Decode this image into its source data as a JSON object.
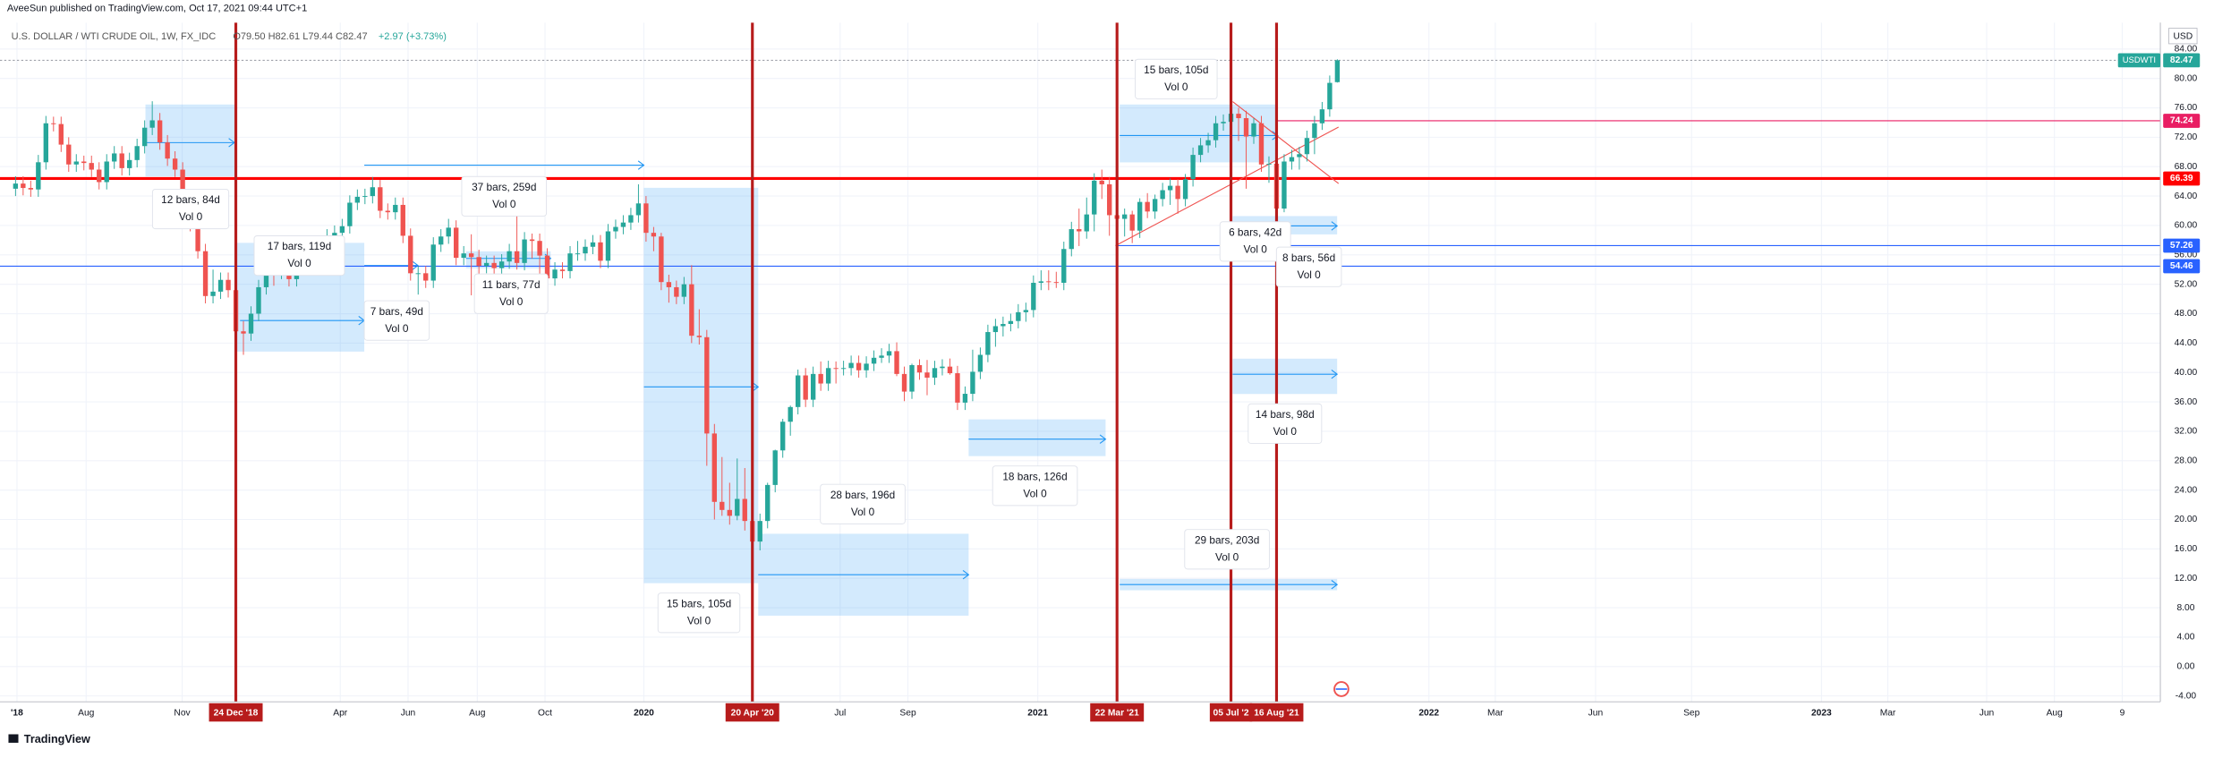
{
  "header": {
    "publisher": "AveeSun published on TradingView.com, Oct 17, 2021 09:44 UTC+1",
    "symbol": "U.S. DOLLAR / WTI CRUDE OIL, 1W, FX_IDC",
    "ohlc": "O79.50 H82.61 L79.44 C82.47",
    "change": "+2.97 (+3.73%)"
  },
  "footer": {
    "brand": "TradingView"
  },
  "chart_data": {
    "type": "candlestick",
    "currency": "USD",
    "symbol_tag": "USDWTI",
    "up_color": "#26a69a",
    "down_color": "#ef5350",
    "ylim": [
      -4.8,
      87.6
    ],
    "yticks": [
      {
        "value": -4,
        "label": "-4.00"
      },
      {
        "value": 0,
        "label": "0.00"
      },
      {
        "value": 4,
        "label": "4.00"
      },
      {
        "value": 8,
        "label": "8.00"
      },
      {
        "value": 12,
        "label": "12.00"
      },
      {
        "value": 16,
        "label": "16.00"
      },
      {
        "value": 20,
        "label": "20.00"
      },
      {
        "value": 24,
        "label": "24.00"
      },
      {
        "value": 28,
        "label": "28.00"
      },
      {
        "value": 32,
        "label": "32.00"
      },
      {
        "value": 36,
        "label": "36.00"
      },
      {
        "value": 40,
        "label": "40.00"
      },
      {
        "value": 44,
        "label": "44.00"
      },
      {
        "value": 48,
        "label": "48.00"
      },
      {
        "value": 52,
        "label": "52.00"
      },
      {
        "value": 56,
        "label": "56.00"
      },
      {
        "value": 60,
        "label": "60.00"
      },
      {
        "value": 64,
        "label": "64.00"
      },
      {
        "value": 68,
        "label": "68.00"
      },
      {
        "value": 72,
        "label": "72.00"
      },
      {
        "value": 76,
        "label": "76.00"
      },
      {
        "value": 80,
        "label": "80.00"
      },
      {
        "value": 84,
        "label": "84.00"
      }
    ],
    "grid": true,
    "x_labels": [
      "'18",
      "Aug",
      "Nov",
      "Apr",
      "Jun",
      "Aug",
      "Oct",
      "2020",
      "Jul",
      "Sep",
      "2021",
      "2022",
      "Mar",
      "Jun",
      "Sep",
      "2023",
      "Mar",
      "Jun",
      "Aug",
      "9"
    ],
    "price_lines": [
      {
        "value": 82.47,
        "color": "#26a69a"
      },
      {
        "value": 74.24,
        "color": "#e91e63"
      },
      {
        "value": 66.39,
        "color": "#ff0000"
      },
      {
        "value": 57.26,
        "color": "#2962ff"
      },
      {
        "value": 54.46,
        "color": "#2962ff"
      }
    ],
    "vlines": [
      {
        "label": "24 Dec '18"
      },
      {
        "label": "20 Apr '20"
      },
      {
        "label": "22 Mar '21"
      },
      {
        "label": "05 Jul '2"
      },
      {
        "label": "16 Aug '21"
      }
    ],
    "vline_color": "#b71c1c",
    "ranges": [
      {
        "text": "12 bars, 84d",
        "volume": "Vol 0"
      },
      {
        "text": "17 bars, 119d",
        "volume": "Vol 0"
      },
      {
        "text": "7 bars, 49d",
        "volume": "Vol 0"
      },
      {
        "text": "37 bars, 259d",
        "volume": "Vol 0"
      },
      {
        "text": "11 bars, 77d",
        "volume": "Vol 0"
      },
      {
        "text": "15 bars, 105d",
        "volume": "Vol 0"
      },
      {
        "text": "28 bars, 196d",
        "volume": "Vol 0"
      },
      {
        "text": "18 bars, 126d",
        "volume": "Vol 0"
      },
      {
        "text": "15 bars, 105d",
        "volume": "Vol 0"
      },
      {
        "text": "6 bars, 42d",
        "volume": "Vol 0"
      },
      {
        "text": "8 bars, 56d",
        "volume": "Vol 0"
      },
      {
        "text": "14 bars, 98d",
        "volume": "Vol 0"
      },
      {
        "text": "29 bars, 203d",
        "volume": "Vol 0"
      }
    ],
    "candles": [
      [
        65.0,
        66.7,
        64.0,
        65.7
      ],
      [
        65.7,
        66.7,
        64.1,
        65.1
      ],
      [
        65.1,
        66.1,
        63.9,
        64.9
      ],
      [
        64.9,
        69.6,
        63.9,
        68.6
      ],
      [
        68.6,
        74.9,
        67.6,
        73.9
      ],
      [
        73.9,
        74.8,
        72.8,
        73.8
      ],
      [
        73.8,
        74.8,
        70.0,
        71.0
      ],
      [
        71.0,
        72.0,
        67.3,
        68.3
      ],
      [
        68.3,
        69.7,
        67.3,
        68.7
      ],
      [
        68.7,
        69.5,
        67.5,
        68.5
      ],
      [
        68.5,
        69.5,
        66.6,
        67.6
      ],
      [
        67.6,
        68.6,
        64.9,
        65.9
      ],
      [
        65.9,
        69.7,
        64.9,
        68.7
      ],
      [
        68.7,
        70.8,
        67.7,
        69.8
      ],
      [
        69.8,
        70.8,
        66.8,
        67.8
      ],
      [
        67.8,
        69.9,
        66.8,
        68.9
      ],
      [
        68.9,
        71.8,
        67.9,
        70.8
      ],
      [
        70.8,
        74.3,
        69.8,
        73.3
      ],
      [
        73.3,
        76.9,
        72.3,
        74.3
      ],
      [
        74.3,
        75.3,
        70.3,
        71.3
      ],
      [
        71.3,
        72.3,
        68.1,
        69.1
      ],
      [
        69.1,
        70.1,
        66.6,
        67.6
      ],
      [
        67.6,
        68.6,
        62.1,
        63.1
      ],
      [
        63.1,
        64.1,
        59.2,
        60.2
      ],
      [
        60.2,
        61.2,
        55.5,
        56.5
      ],
      [
        56.5,
        57.5,
        49.4,
        50.4
      ],
      [
        50.4,
        54.0,
        49.4,
        51.0
      ],
      [
        51.0,
        53.6,
        50.0,
        52.6
      ],
      [
        52.6,
        53.6,
        50.2,
        51.2
      ],
      [
        51.2,
        52.2,
        44.6,
        45.6
      ],
      [
        45.6,
        47.0,
        42.4,
        45.3
      ],
      [
        45.3,
        49.0,
        44.3,
        48.0
      ],
      [
        48.0,
        52.6,
        47.0,
        51.6
      ],
      [
        51.6,
        54.8,
        50.6,
        53.8
      ],
      [
        53.8,
        54.7,
        51.8,
        53.7
      ],
      [
        53.7,
        56.3,
        52.7,
        55.3
      ],
      [
        55.3,
        56.3,
        51.7,
        52.7
      ],
      [
        52.7,
        56.6,
        51.7,
        55.6
      ],
      [
        55.6,
        58.3,
        54.6,
        57.3
      ],
      [
        57.3,
        58.3,
        55.1,
        56.1
      ],
      [
        56.1,
        57.1,
        55.1,
        56.1
      ],
      [
        56.1,
        59.5,
        55.1,
        58.5
      ],
      [
        58.5,
        60.0,
        57.5,
        59.0
      ],
      [
        59.0,
        60.9,
        58.0,
        59.9
      ],
      [
        59.9,
        64.1,
        58.9,
        63.1
      ],
      [
        63.1,
        64.9,
        62.1,
        63.9
      ],
      [
        63.9,
        65.0,
        62.9,
        64.0
      ],
      [
        64.0,
        66.6,
        63.0,
        65.2
      ],
      [
        65.2,
        66.2,
        61.0,
        62.0
      ],
      [
        62.0,
        63.0,
        60.8,
        61.8
      ],
      [
        61.8,
        63.8,
        60.8,
        62.8
      ],
      [
        62.8,
        63.8,
        57.6,
        58.6
      ],
      [
        58.6,
        59.6,
        52.5,
        53.5
      ],
      [
        53.5,
        54.5,
        50.6,
        53.5
      ],
      [
        53.5,
        54.5,
        51.5,
        52.5
      ],
      [
        52.5,
        58.4,
        51.5,
        57.4
      ],
      [
        57.4,
        59.5,
        56.4,
        58.5
      ],
      [
        58.5,
        60.9,
        57.5,
        59.7
      ],
      [
        59.7,
        60.7,
        54.6,
        55.6
      ],
      [
        55.6,
        57.2,
        54.6,
        56.2
      ],
      [
        56.2,
        58.8,
        50.5,
        55.7
      ],
      [
        55.7,
        56.7,
        51.0,
        54.5
      ],
      [
        54.5,
        55.9,
        53.5,
        54.9
      ],
      [
        54.9,
        55.9,
        53.2,
        54.2
      ],
      [
        54.2,
        56.1,
        53.2,
        55.1
      ],
      [
        55.1,
        57.5,
        54.1,
        56.5
      ],
      [
        56.5,
        62.9,
        54.0,
        54.9
      ],
      [
        54.9,
        59.1,
        53.9,
        58.1
      ],
      [
        58.1,
        58.9,
        55.5,
        57.9
      ],
      [
        57.9,
        58.9,
        50.9,
        55.9
      ],
      [
        55.9,
        56.9,
        51.8,
        52.8
      ],
      [
        52.8,
        55.0,
        51.8,
        54.0
      ],
      [
        54.0,
        55.0,
        52.8,
        53.8
      ],
      [
        53.8,
        57.2,
        52.8,
        56.2
      ],
      [
        56.2,
        57.9,
        55.2,
        56.2
      ],
      [
        56.2,
        58.1,
        55.2,
        57.1
      ],
      [
        57.1,
        58.7,
        56.1,
        57.7
      ],
      [
        57.7,
        58.7,
        54.2,
        55.2
      ],
      [
        55.2,
        60.2,
        54.2,
        59.2
      ],
      [
        59.2,
        60.8,
        58.2,
        59.8
      ],
      [
        59.8,
        61.4,
        58.8,
        60.4
      ],
      [
        60.4,
        62.4,
        59.4,
        61.4
      ],
      [
        61.4,
        65.6,
        60.4,
        63.0
      ],
      [
        63.0,
        64.0,
        57.8,
        59.0
      ],
      [
        59.0,
        59.8,
        56.5,
        58.5
      ],
      [
        58.5,
        59.0,
        51.2,
        52.3
      ],
      [
        52.3,
        53.3,
        49.5,
        51.6
      ],
      [
        51.6,
        52.5,
        49.3,
        50.3
      ],
      [
        50.3,
        53.0,
        49.3,
        52.0
      ],
      [
        52.0,
        54.6,
        44.0,
        45.0
      ],
      [
        45.0,
        48.6,
        43.8,
        44.8
      ],
      [
        44.8,
        45.8,
        27.3,
        31.7
      ],
      [
        31.7,
        33.0,
        20.0,
        22.4
      ],
      [
        22.4,
        28.5,
        20.5,
        21.3
      ],
      [
        21.3,
        25.0,
        19.3,
        20.5
      ],
      [
        20.5,
        28.3,
        19.9,
        22.8
      ],
      [
        22.8,
        27.0,
        18.5,
        19.8
      ],
      [
        19.8,
        21.0,
        15.5,
        17.0
      ],
      [
        17.0,
        20.8,
        15.8,
        19.8
      ],
      [
        19.8,
        25.0,
        18.8,
        24.7
      ],
      [
        24.7,
        29.5,
        23.7,
        29.4
      ],
      [
        29.4,
        33.7,
        28.4,
        33.3
      ],
      [
        33.3,
        35.5,
        31.4,
        35.3
      ],
      [
        35.3,
        40.4,
        34.3,
        39.6
      ],
      [
        39.6,
        40.6,
        35.3,
        36.3
      ],
      [
        36.3,
        40.8,
        35.3,
        39.8
      ],
      [
        39.8,
        41.5,
        37.5,
        38.5
      ],
      [
        38.5,
        41.6,
        37.5,
        40.6
      ],
      [
        40.6,
        41.5,
        38.5,
        40.5
      ],
      [
        40.5,
        41.6,
        39.6,
        40.6
      ],
      [
        40.6,
        42.3,
        39.6,
        41.3
      ],
      [
        41.3,
        42.3,
        39.3,
        40.3
      ],
      [
        40.3,
        42.2,
        39.3,
        41.2
      ],
      [
        41.2,
        43.0,
        40.2,
        42.0
      ],
      [
        42.0,
        43.3,
        41.3,
        42.3
      ],
      [
        42.3,
        43.9,
        41.3,
        42.9
      ],
      [
        42.9,
        44.1,
        39.5,
        39.8
      ],
      [
        39.8,
        40.8,
        36.1,
        37.4
      ],
      [
        37.4,
        41.2,
        36.4,
        41.0
      ],
      [
        41.0,
        41.8,
        39.0,
        40.0
      ],
      [
        40.0,
        41.7,
        36.9,
        39.3
      ],
      [
        39.3,
        41.6,
        38.3,
        40.6
      ],
      [
        40.6,
        41.8,
        39.6,
        40.8
      ],
      [
        40.8,
        41.9,
        39.7,
        39.9
      ],
      [
        39.9,
        40.9,
        34.9,
        35.9
      ],
      [
        35.9,
        38.1,
        34.9,
        37.1
      ],
      [
        37.1,
        43.1,
        36.1,
        40.1
      ],
      [
        40.1,
        43.4,
        39.1,
        42.4
      ],
      [
        42.4,
        46.5,
        41.4,
        45.5
      ],
      [
        45.5,
        47.3,
        43.5,
        46.3
      ],
      [
        46.3,
        47.6,
        44.9,
        46.6
      ],
      [
        46.6,
        48.0,
        45.6,
        47.0
      ],
      [
        47.0,
        49.3,
        46.0,
        48.2
      ],
      [
        48.2,
        49.5,
        46.9,
        48.5
      ],
      [
        48.5,
        53.2,
        47.5,
        52.2
      ],
      [
        52.2,
        53.9,
        51.2,
        52.4
      ],
      [
        52.4,
        53.9,
        51.2,
        52.3
      ],
      [
        52.3,
        53.7,
        51.5,
        52.2
      ],
      [
        52.2,
        57.8,
        51.2,
        56.8
      ],
      [
        56.8,
        60.5,
        55.8,
        59.5
      ],
      [
        59.5,
        62.3,
        57.2,
        59.2
      ],
      [
        59.2,
        63.8,
        58.2,
        61.5
      ],
      [
        61.5,
        67.1,
        59.2,
        66.1
      ],
      [
        66.1,
        67.6,
        63.6,
        65.6
      ],
      [
        65.6,
        66.6,
        58.6,
        61.4
      ],
      [
        61.4,
        62.5,
        57.3,
        60.9
      ],
      [
        60.9,
        62.3,
        58.5,
        61.5
      ],
      [
        61.5,
        62.0,
        57.6,
        59.3
      ],
      [
        59.3,
        63.7,
        58.3,
        63.2
      ],
      [
        63.2,
        64.4,
        61.0,
        61.9
      ],
      [
        61.9,
        64.2,
        60.9,
        63.6
      ],
      [
        63.6,
        65.8,
        62.6,
        64.8
      ],
      [
        64.8,
        66.4,
        62.8,
        65.4
      ],
      [
        65.4,
        66.3,
        61.6,
        63.6
      ],
      [
        63.6,
        67.0,
        62.6,
        66.3
      ],
      [
        66.3,
        70.6,
        65.3,
        69.6
      ],
      [
        69.6,
        71.9,
        68.6,
        70.9
      ],
      [
        70.9,
        72.6,
        69.9,
        71.6
      ],
      [
        71.6,
        74.9,
        70.6,
        73.9
      ],
      [
        73.9,
        75.1,
        72.9,
        74.1
      ],
      [
        74.1,
        76.9,
        73.1,
        75.2
      ],
      [
        75.2,
        76.0,
        71.5,
        74.6
      ],
      [
        74.6,
        75.6,
        65.0,
        72.1
      ],
      [
        72.1,
        74.6,
        71.1,
        73.9
      ],
      [
        73.9,
        74.9,
        67.3,
        68.3
      ],
      [
        68.3,
        69.4,
        65.8,
        68.4
      ],
      [
        68.4,
        69.4,
        61.3,
        62.3
      ],
      [
        62.3,
        69.7,
        61.8,
        68.7
      ],
      [
        68.7,
        70.3,
        67.6,
        69.3
      ],
      [
        69.3,
        70.7,
        67.6,
        69.7
      ],
      [
        69.7,
        72.9,
        68.7,
        71.9
      ],
      [
        71.9,
        74.9,
        69.7,
        73.9
      ],
      [
        73.9,
        76.8,
        73.0,
        75.8
      ],
      [
        75.8,
        80.4,
        74.8,
        79.4
      ],
      [
        79.5,
        82.61,
        79.44,
        82.47
      ]
    ]
  }
}
